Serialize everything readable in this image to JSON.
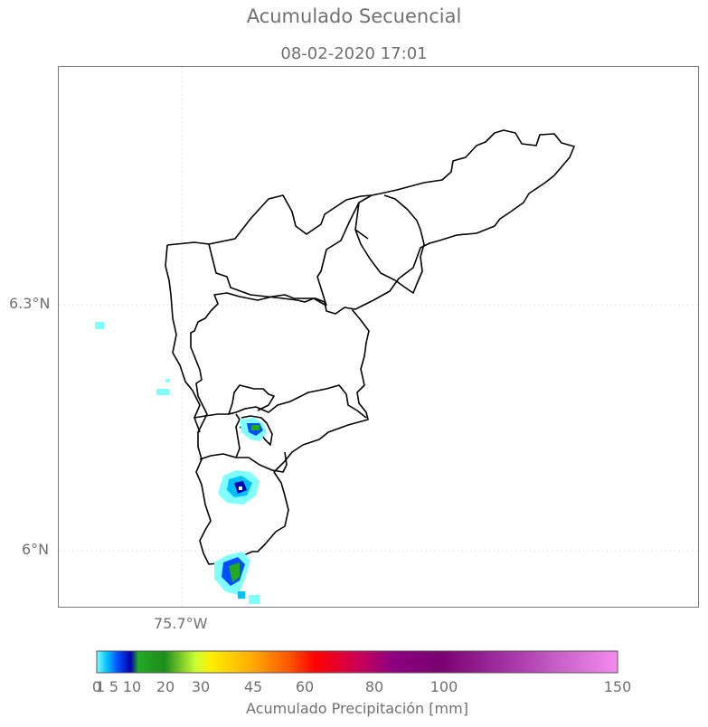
{
  "title": "Acumulado Secuencial",
  "subtitle": "08-02-2020 17:01",
  "axes": {
    "lat_labels": [
      "6.3°N",
      "6°N"
    ],
    "lon_labels": [
      "75.7°W"
    ]
  },
  "colorbar": {
    "label": "Acumulado Precipitación [mm]",
    "ticks": [
      "0",
      "1",
      "5",
      "10",
      "20",
      "30",
      "45",
      "60",
      "80",
      "100",
      "150"
    ],
    "tick_values": [
      0,
      1,
      5,
      10,
      20,
      30,
      45,
      60,
      80,
      100,
      150
    ],
    "colors": [
      "#80ffff",
      "#00bfff",
      "#0050ff",
      "#0000aa",
      "#22aa22",
      "#1d8c1d",
      "#ccff33",
      "#ffee00",
      "#ffaa00",
      "#ff5500",
      "#ff0000",
      "#cc0055",
      "#8b0080",
      "#7a0070",
      "#a030a0",
      "#cc66cc",
      "#f58bf0"
    ]
  },
  "colors": {
    "boundary": "#000000",
    "frame": "#7a7a7a",
    "text": "#707070"
  }
}
